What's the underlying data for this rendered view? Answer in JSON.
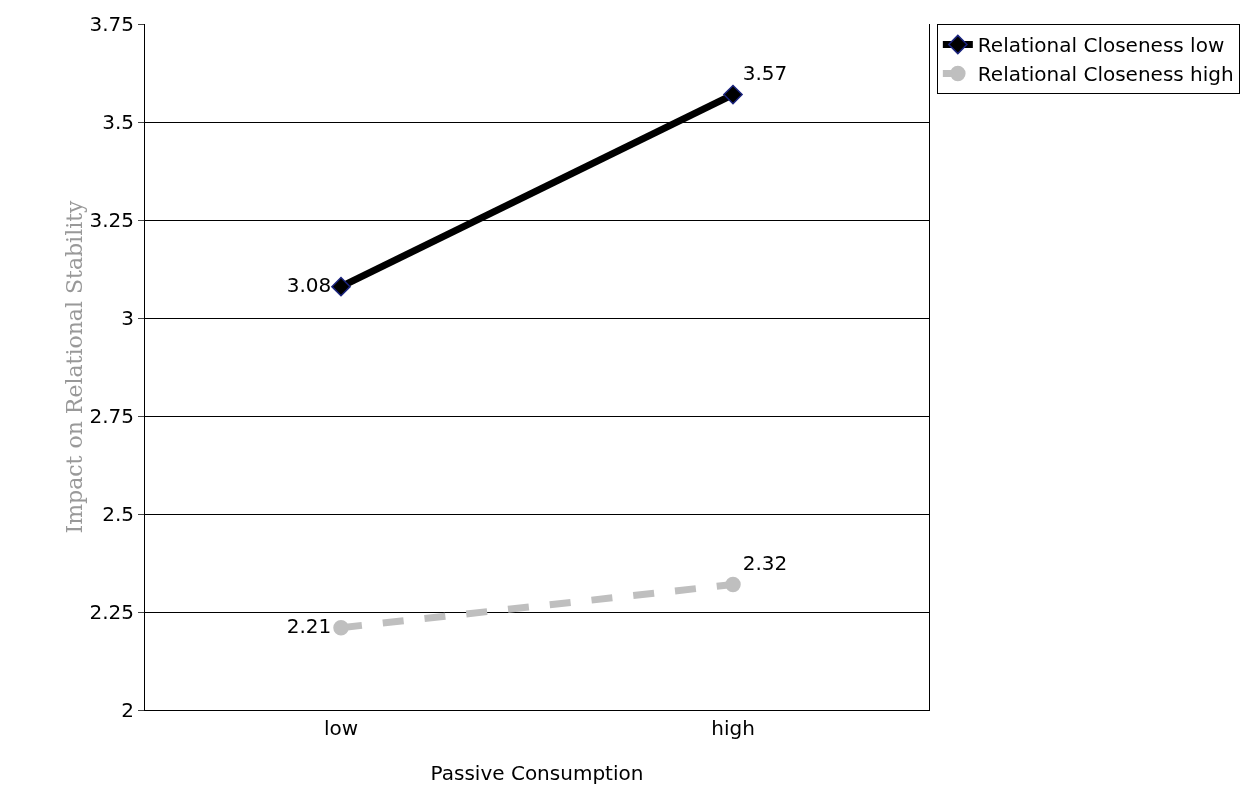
{
  "chart_data": {
    "type": "line",
    "ylabel": "Impact on Relational Stability",
    "xlabel": "Passive Consumption",
    "categories": [
      "low",
      "high"
    ],
    "series": [
      {
        "name": "Relational Closeness low",
        "color": "#000000",
        "values": [
          3.08,
          3.57
        ],
        "marker": "diamond",
        "line_style": "solid"
      },
      {
        "name": "Relational Closeness high",
        "color": "#bfbfbf",
        "values": [
          2.21,
          2.32
        ],
        "marker": "circle",
        "line_style": "dashed"
      }
    ],
    "ylim": [
      2,
      3.75
    ],
    "yticks": [
      2,
      2.25,
      2.5,
      2.75,
      3,
      3.25,
      3.5,
      3.75
    ],
    "grid": "y",
    "legend": "top right",
    "data_labels": true
  }
}
